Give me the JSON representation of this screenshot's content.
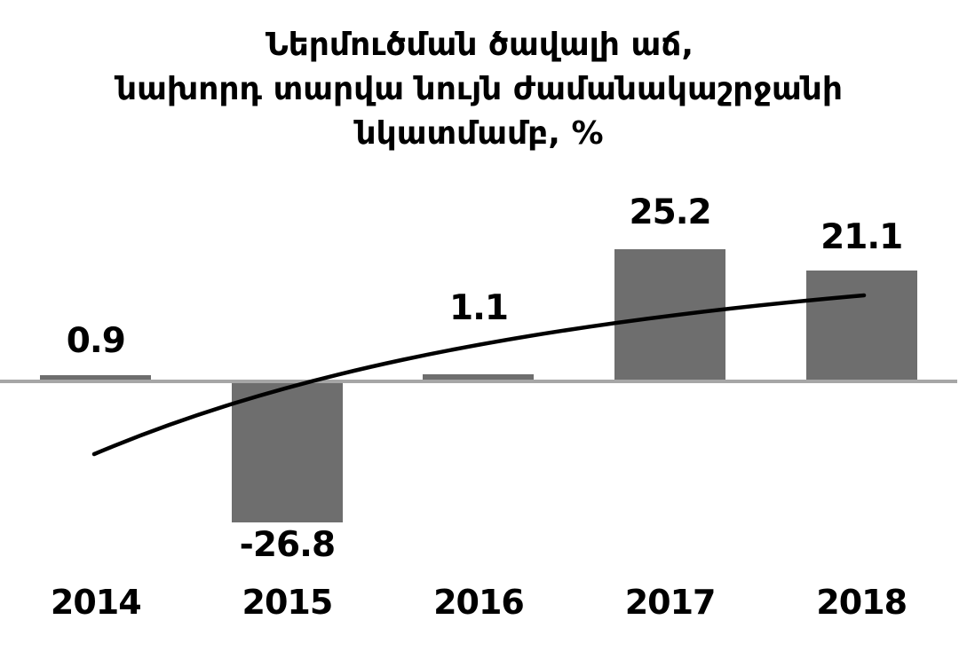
{
  "title": {
    "lines": [
      "Ներմուծման ծավալի աճ,",
      "նախորդ տարվա նույն ժամանակաշրջանի",
      "նկատմամբ, %"
    ]
  },
  "chart_data": {
    "type": "bar",
    "title": "Ներմուծման ծավալի աճ, նախորդ տարվա նույն ժամանակաշրջանի նկատմամբ, %",
    "categories": [
      "2014",
      "2015",
      "2016",
      "2017",
      "2018"
    ],
    "series": [
      {
        "name": "import-volume-growth-bars",
        "type": "bar",
        "values": [
          0.9,
          -26.8,
          1.1,
          25.2,
          21.1
        ]
      },
      {
        "name": "trend-line",
        "type": "line",
        "note": "unlabeled smooth trend curve, values estimated from pixels",
        "estimated_values": [
          -14.4,
          -1.5,
          6.2,
          11.6,
          16.2
        ]
      }
    ],
    "data_labels": [
      "0.9",
      "-26.8",
      "1.1",
      "25.2",
      "21.1"
    ],
    "xlabel": "",
    "ylabel": "",
    "ylim": [
      -30,
      30
    ],
    "grid": false,
    "legend": false,
    "colors": {
      "bar": "#6e6e6e",
      "axis_line": "#a6a6a6",
      "trend_line": "#000000",
      "text": "#000000",
      "background": "#ffffff"
    }
  }
}
